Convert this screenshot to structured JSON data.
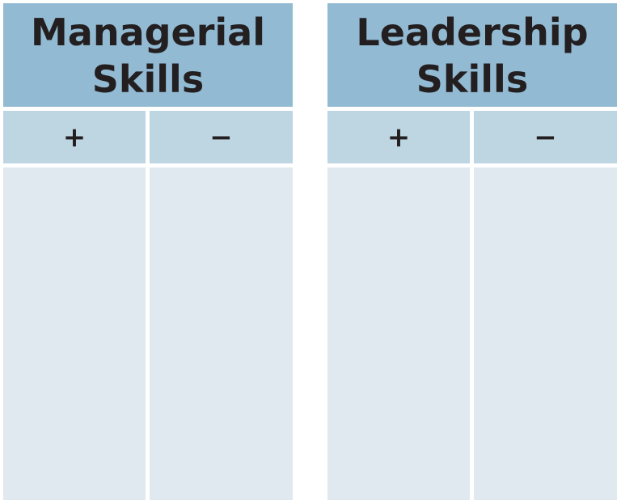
{
  "tables": [
    {
      "title_line1": "Managerial",
      "title_line2": "Skills",
      "plus_label": "+",
      "minus_label": "−",
      "plus_entries": [],
      "minus_entries": []
    },
    {
      "title_line1": "Leadership",
      "title_line2": "Skills",
      "plus_label": "+",
      "minus_label": "−",
      "plus_entries": [],
      "minus_entries": []
    }
  ],
  "colors": {
    "header": "#93bad3",
    "subheader": "#bed5e2",
    "body": "#dfe9ef",
    "text": "#231f20"
  }
}
